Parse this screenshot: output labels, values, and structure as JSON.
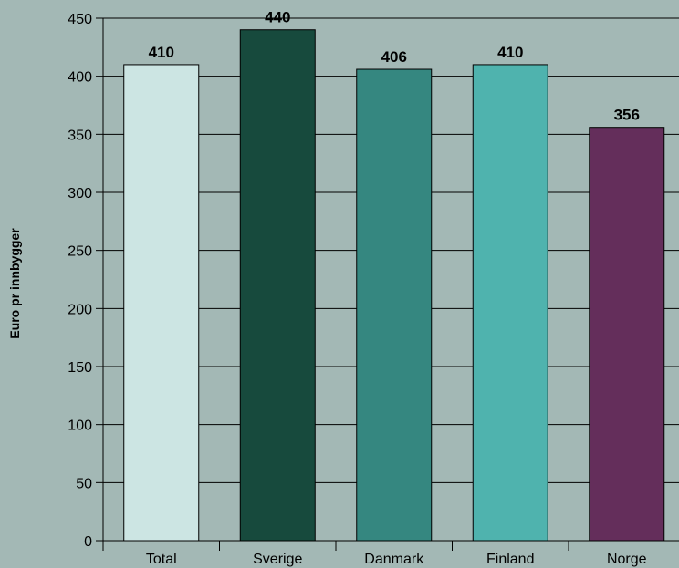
{
  "colors": {
    "background": "#a3b8b5",
    "gridline": "#000000",
    "bar_outline": "#000000"
  },
  "chart_data": {
    "type": "bar",
    "title": "",
    "xlabel": "",
    "ylabel": "Euro pr innbygger",
    "categories": [
      "Total",
      "Sverige",
      "Danmark",
      "Finland",
      "Norge"
    ],
    "values": [
      410,
      440,
      406,
      410,
      356
    ],
    "bar_colors": [
      "#cce5e3",
      "#174a3d",
      "#358780",
      "#4fb3ae",
      "#642e5b"
    ],
    "ylim": [
      0,
      450
    ],
    "yticks": [
      0,
      50,
      100,
      150,
      200,
      250,
      300,
      350,
      400,
      450
    ],
    "grid": true,
    "data_labels": true,
    "legend": "none"
  }
}
